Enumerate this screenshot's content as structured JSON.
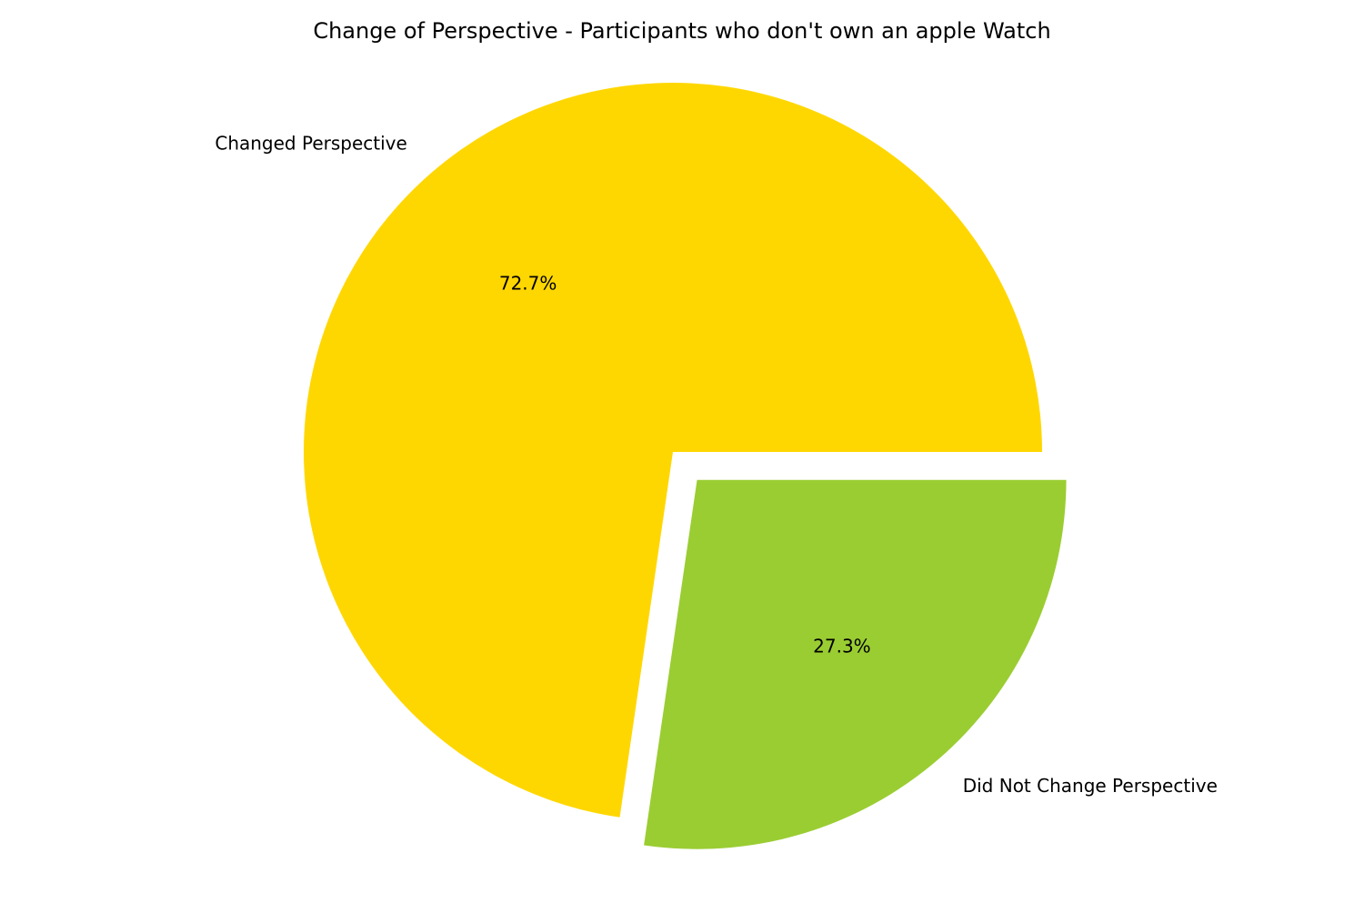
{
  "chart_data": {
    "type": "pie",
    "title": "Change of Perspective - Participants who don't own an apple Watch",
    "slices": [
      {
        "label": "Changed Perspective",
        "value": 72.7,
        "pct_label": "72.7%",
        "color": "#FFD700",
        "exploded": false
      },
      {
        "label": "Did Not Change Perspective",
        "value": 27.3,
        "pct_label": "27.3%",
        "color": "#9ACD32",
        "exploded": true
      }
    ],
    "start_angle_deg": 0,
    "direction": "counterclockwise",
    "legend": "none"
  }
}
